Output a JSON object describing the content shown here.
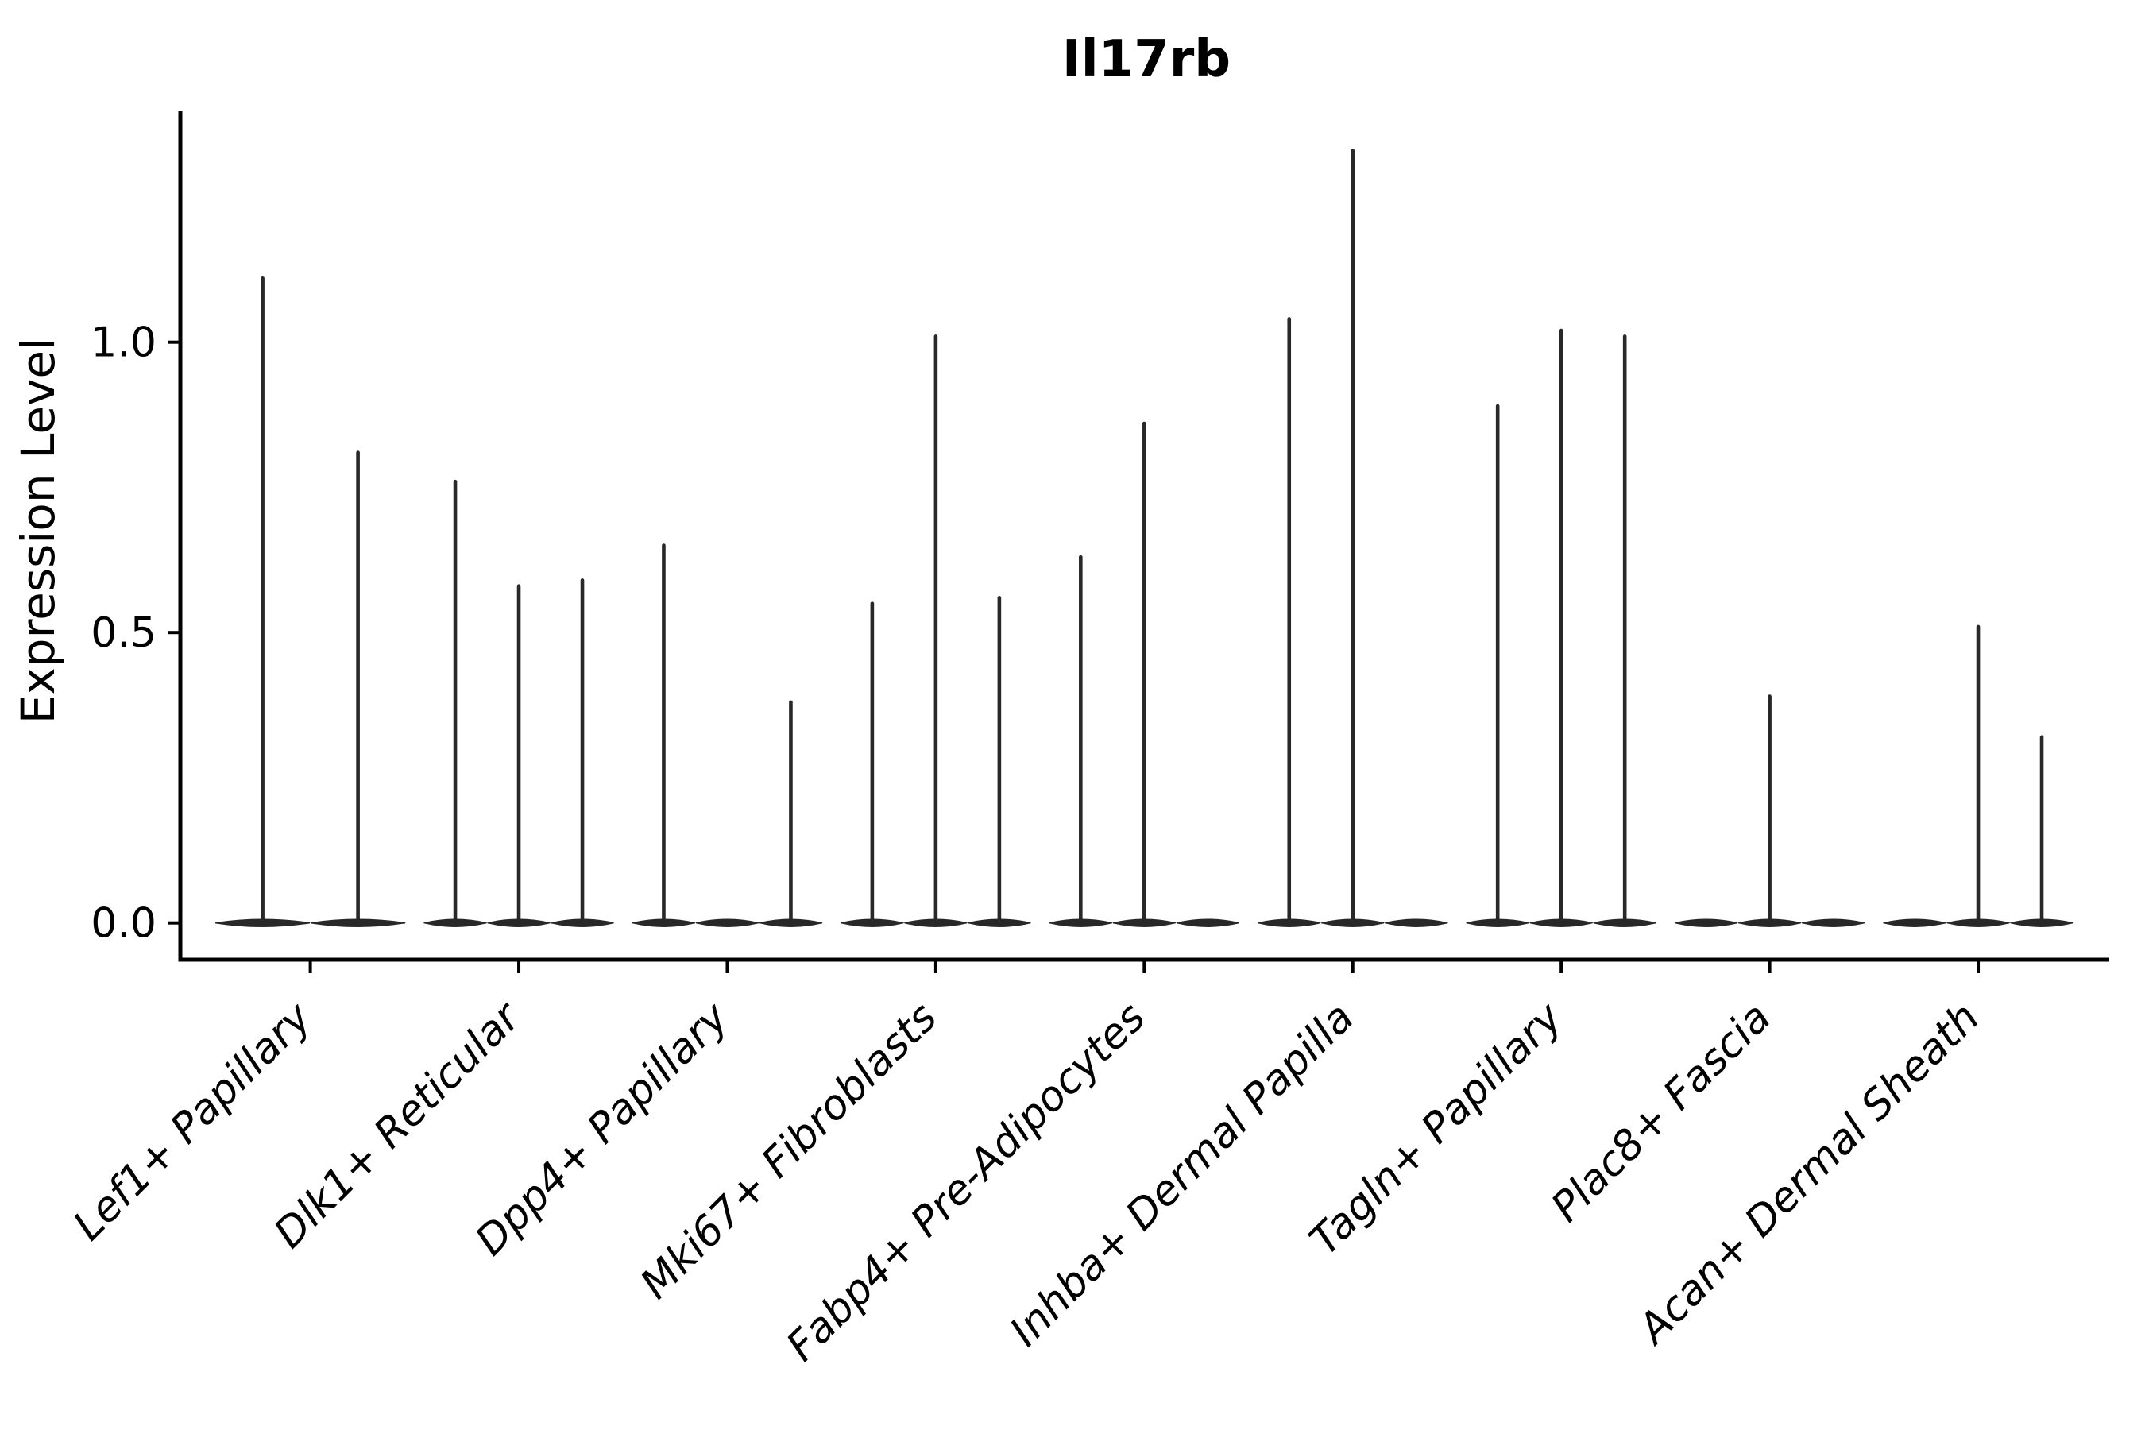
{
  "title": "Il17rb",
  "axes": {
    "ylabel": "Expression Level",
    "xlabel": "",
    "ytick_labels": [
      "0.0",
      "0.5",
      "1.0"
    ]
  },
  "colors": {
    "violin": "#282828",
    "axis": "#000000",
    "text": "#000000",
    "background": "#ffffff"
  },
  "chart_data": {
    "type": "violin",
    "title": "Il17rb",
    "xlabel": "",
    "ylabel": "Expression Level",
    "ylim": [
      -0.06,
      1.4
    ],
    "ytick_values": [
      0.0,
      0.5,
      1.0
    ],
    "ytick_labels": [
      "0.0",
      "0.5",
      "1.0"
    ],
    "grid": false,
    "legend": false,
    "style": "Seurat-like grouped violin plot; each violin collapsed to a flat lens at 0 with a thin vertical density spike up to its max expression value",
    "x_label_rotation_deg": 45,
    "categories": [
      {
        "label": "Lef1+ Papillary",
        "violin_max": [
          1.11,
          0.81
        ]
      },
      {
        "label": "Dlk1+ Reticular",
        "violin_max": [
          0.76,
          0.58,
          0.59
        ]
      },
      {
        "label": "Dpp4+ Papillary",
        "violin_max": [
          0.65,
          0,
          0.38
        ]
      },
      {
        "label": "Mki67+ Fibroblasts",
        "violin_max": [
          0.55,
          1.01,
          0.56
        ]
      },
      {
        "label": "Fabp4+ Pre-Adipocytes",
        "violin_max": [
          0.63,
          0.86,
          0
        ]
      },
      {
        "label": "Inhba+ Dermal Papilla",
        "violin_max": [
          1.04,
          1.33,
          0
        ]
      },
      {
        "label": "Tagln+ Papillary",
        "violin_max": [
          0.89,
          1.02,
          1.01
        ]
      },
      {
        "label": "Plac8+ Fascia",
        "violin_max": [
          0,
          0.39,
          0
        ]
      },
      {
        "label": "Acan+ Dermal Sheath",
        "violin_max": [
          0,
          0.51,
          0.32
        ]
      }
    ]
  }
}
